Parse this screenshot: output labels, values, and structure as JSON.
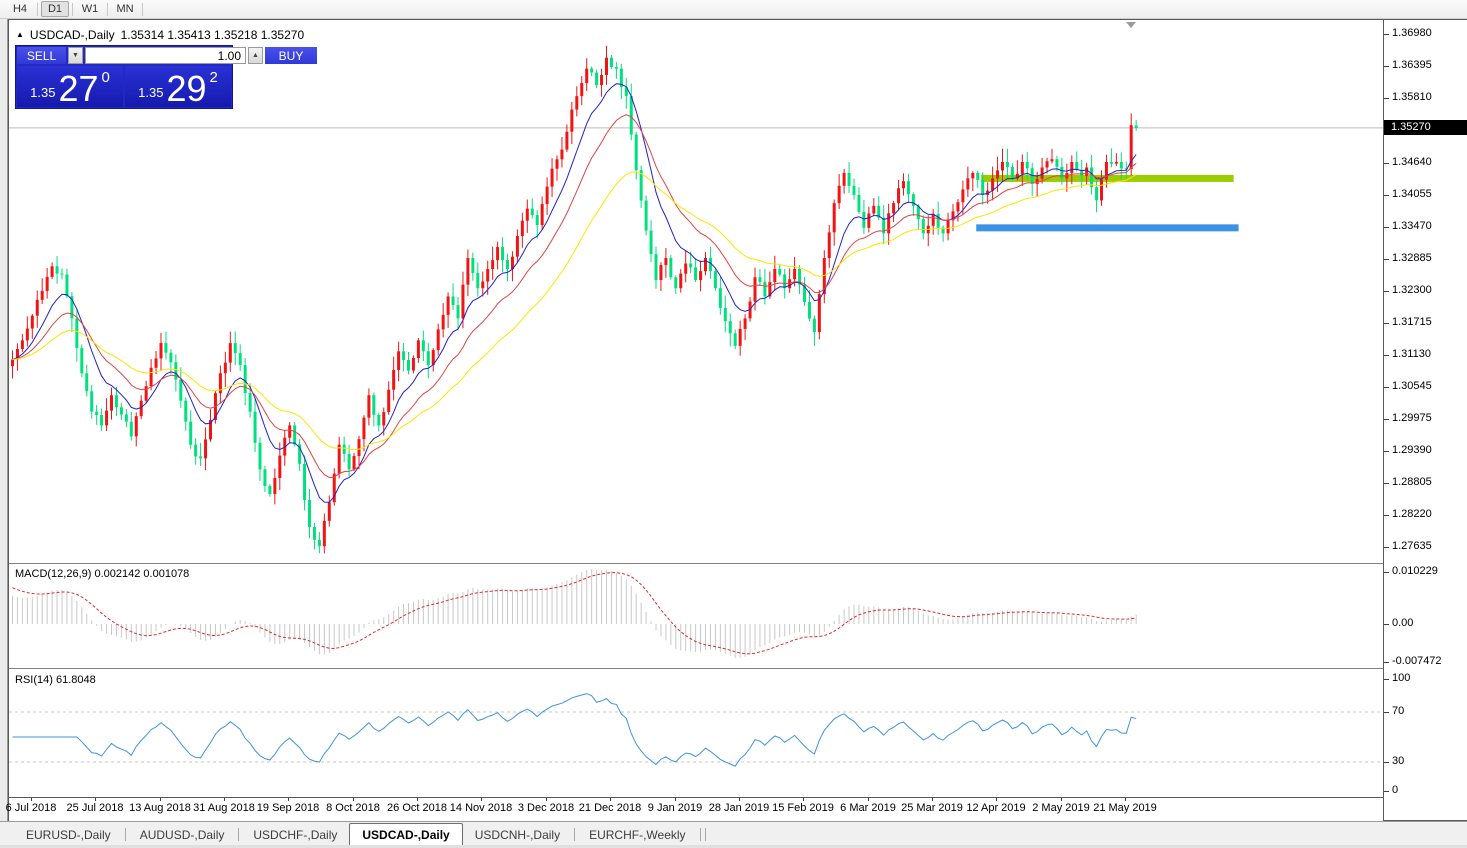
{
  "toolbar": {
    "timeframes": [
      {
        "label": "H4",
        "active": false
      },
      {
        "label": "D1",
        "active": true
      },
      {
        "label": "W1",
        "active": false
      },
      {
        "label": "MN",
        "active": false
      }
    ]
  },
  "chart_header": {
    "collapse_icon": "▲",
    "symbol": "USDCAD-,Daily",
    "ohlc_text": "1.35314 1.35413 1.35218 1.35270"
  },
  "trade_panel": {
    "sell_label": "SELL",
    "buy_label": "BUY",
    "volume": "1.00",
    "spinner_down": "▼",
    "spinner_up": "▲",
    "sell_price_small": "1.35",
    "sell_price_big": "27",
    "sell_price_sup": "0",
    "buy_price_small": "1.35",
    "buy_price_big": "29",
    "buy_price_sup": "2"
  },
  "price_axis": {
    "labels": [
      "1.36980",
      "1.36395",
      "1.35810",
      "1.34640",
      "1.34055",
      "1.33470",
      "1.32885",
      "1.32300",
      "1.31715",
      "1.31130",
      "1.30545",
      "1.29975",
      "1.29390",
      "1.28805",
      "1.28220",
      "1.27635"
    ],
    "current_price_label": "1.35270"
  },
  "macd_panel": {
    "label": "MACD(12,26,9)",
    "values_text": "0.002142 0.001078",
    "axis_labels": [
      {
        "text": "0.010229",
        "value": 0.010229
      },
      {
        "text": "0.00",
        "value": 0
      },
      {
        "text": "-0.007472",
        "value": -0.007472
      }
    ]
  },
  "rsi_panel": {
    "label": "RSI(14)",
    "value_text": "61.8048",
    "axis_labels": [
      {
        "text": "100",
        "value": 100
      },
      {
        "text": "70",
        "value": 70
      },
      {
        "text": "30",
        "value": 30
      },
      {
        "text": "0",
        "value": 0
      }
    ]
  },
  "date_axis": [
    "6 Jul 2018",
    "25 Jul 2018",
    "13 Aug 2018",
    "31 Aug 2018",
    "19 Sep 2018",
    "8 Oct 2018",
    "26 Oct 2018",
    "14 Nov 2018",
    "3 Dec 2018",
    "21 Dec 2018",
    "9 Jan 2019",
    "28 Jan 2019",
    "15 Feb 2019",
    "6 Mar 2019",
    "25 Mar 2019",
    "12 Apr 2019",
    "2 May 2019",
    "21 May 2019"
  ],
  "tabs": [
    {
      "label": "EURUSD-,Daily",
      "active": false
    },
    {
      "label": "AUDUSD-,Daily",
      "active": false
    },
    {
      "label": "USDCHF-,Daily",
      "active": false
    },
    {
      "label": "USDCAD-,Daily",
      "active": true
    },
    {
      "label": "USDCNH-,Daily",
      "active": false
    },
    {
      "label": "EURCHF-,Weekly",
      "active": false
    }
  ],
  "chart_data": {
    "type": "candlestick",
    "symbol": "USDCAD",
    "timeframe": "Daily",
    "title": "USDCAD-,Daily",
    "last_candle_ohlc": {
      "open": 1.35314,
      "high": 1.35413,
      "low": 1.35218,
      "close": 1.3527
    },
    "current_price": 1.3527,
    "price_axis_range": [
      1.2738,
      1.372
    ],
    "candle_count": 228,
    "x_range_labels": [
      "6 Jul 2018",
      "21 May 2019"
    ],
    "close_path_anchors": [
      [
        0,
        1.3105
      ],
      [
        2,
        1.314
      ],
      [
        4,
        1.3185
      ],
      [
        6,
        1.323
      ],
      [
        8,
        1.3275
      ],
      [
        10,
        1.326
      ],
      [
        12,
        1.318
      ],
      [
        14,
        1.308
      ],
      [
        16,
        1.301
      ],
      [
        18,
        1.2985
      ],
      [
        20,
        1.304
      ],
      [
        22,
        1.3005
      ],
      [
        24,
        1.2965
      ],
      [
        26,
        1.303
      ],
      [
        28,
        1.309
      ],
      [
        30,
        1.3135
      ],
      [
        32,
        1.31
      ],
      [
        34,
        1.303
      ],
      [
        36,
        1.295
      ],
      [
        38,
        1.2925
      ],
      [
        40,
        1.2995
      ],
      [
        42,
        1.308
      ],
      [
        44,
        1.3135
      ],
      [
        46,
        1.3095
      ],
      [
        48,
        1.301
      ],
      [
        50,
        1.2905
      ],
      [
        52,
        1.286
      ],
      [
        54,
        1.293
      ],
      [
        56,
        1.2985
      ],
      [
        58,
        1.2915
      ],
      [
        60,
        1.28
      ],
      [
        62,
        1.2765
      ],
      [
        64,
        1.2845
      ],
      [
        66,
        1.295
      ],
      [
        68,
        1.2905
      ],
      [
        70,
        1.296
      ],
      [
        72,
        1.304
      ],
      [
        74,
        1.2985
      ],
      [
        76,
        1.305
      ],
      [
        78,
        1.312
      ],
      [
        80,
        1.3085
      ],
      [
        82,
        1.314
      ],
      [
        84,
        1.3095
      ],
      [
        86,
        1.316
      ],
      [
        88,
        1.322
      ],
      [
        90,
        1.318
      ],
      [
        92,
        1.329
      ],
      [
        94,
        1.3235
      ],
      [
        96,
        1.327
      ],
      [
        98,
        1.331
      ],
      [
        100,
        1.327
      ],
      [
        102,
        1.333
      ],
      [
        104,
        1.338
      ],
      [
        106,
        1.335
      ],
      [
        108,
        1.342
      ],
      [
        110,
        1.347
      ],
      [
        112,
        1.352
      ],
      [
        114,
        1.3585
      ],
      [
        116,
        1.3635
      ],
      [
        118,
        1.3605
      ],
      [
        120,
        1.3655
      ],
      [
        122,
        1.3635
      ],
      [
        124,
        1.3585
      ],
      [
        126,
        1.345
      ],
      [
        128,
        1.334
      ],
      [
        130,
        1.325
      ],
      [
        132,
        1.329
      ],
      [
        134,
        1.3235
      ],
      [
        136,
        1.328
      ],
      [
        138,
        1.325
      ],
      [
        140,
        1.329
      ],
      [
        142,
        1.3235
      ],
      [
        144,
        1.3175
      ],
      [
        146,
        1.313
      ],
      [
        148,
        1.318
      ],
      [
        150,
        1.3255
      ],
      [
        152,
        1.322
      ],
      [
        154,
        1.327
      ],
      [
        156,
        1.3235
      ],
      [
        158,
        1.327
      ],
      [
        160,
        1.321
      ],
      [
        162,
        1.3155
      ],
      [
        164,
        1.329
      ],
      [
        166,
        1.339
      ],
      [
        168,
        1.3445
      ],
      [
        170,
        1.3405
      ],
      [
        172,
        1.3345
      ],
      [
        174,
        1.3385
      ],
      [
        176,
        1.3335
      ],
      [
        178,
        1.339
      ],
      [
        180,
        1.343
      ],
      [
        182,
        1.3385
      ],
      [
        184,
        1.3335
      ],
      [
        186,
        1.337
      ],
      [
        188,
        1.3335
      ],
      [
        190,
        1.3375
      ],
      [
        192,
        1.3415
      ],
      [
        194,
        1.3445
      ],
      [
        196,
        1.3405
      ],
      [
        198,
        1.3435
      ],
      [
        200,
        1.3465
      ],
      [
        202,
        1.3435
      ],
      [
        204,
        1.3465
      ],
      [
        206,
        1.3425
      ],
      [
        208,
        1.3455
      ],
      [
        210,
        1.347
      ],
      [
        212,
        1.3435
      ],
      [
        214,
        1.3465
      ],
      [
        216,
        1.344
      ],
      [
        217,
        1.3455
      ],
      [
        219,
        1.3395
      ],
      [
        221,
        1.3465
      ],
      [
        223,
        1.3465
      ],
      [
        225,
        1.3452
      ],
      [
        226,
        1.3532
      ],
      [
        227,
        1.3527
      ]
    ],
    "levels": [
      {
        "name": "resistance-band",
        "price": 1.3435,
        "color": "#9ACD00",
        "from_index": 196,
        "to_index": 247,
        "thickness_px": 7
      },
      {
        "name": "support-band",
        "price": 1.3345,
        "color": "#3E92E5",
        "from_index": 195,
        "to_index": 248,
        "thickness_px": 7
      }
    ],
    "moving_averages": [
      {
        "name": "fast",
        "type": "EMA",
        "period": 9,
        "color": "#2121CE"
      },
      {
        "name": "mid",
        "type": "EMA",
        "period": 18,
        "color": "#E04545"
      },
      {
        "name": "slow",
        "type": "EMA",
        "period": 36,
        "color": "#FFE400"
      }
    ],
    "macd": {
      "fast": 12,
      "slow": 26,
      "signal": 9,
      "displayed_main": 0.002142,
      "displayed_signal": 0.001078,
      "axis_max": 0.010229,
      "axis_min": -0.007472,
      "histogram_color": "#C8C8C8",
      "signal_color": "#DD2C2C"
    },
    "rsi": {
      "period": 14,
      "displayed_value": 61.8048,
      "levels": [
        30,
        70
      ],
      "color": "#3E94DE",
      "level_line_color": "#C8C8C8"
    },
    "colors": {
      "bull": "#F21414",
      "bear": "#00E07E",
      "current_price_line": "#BABABA"
    }
  }
}
